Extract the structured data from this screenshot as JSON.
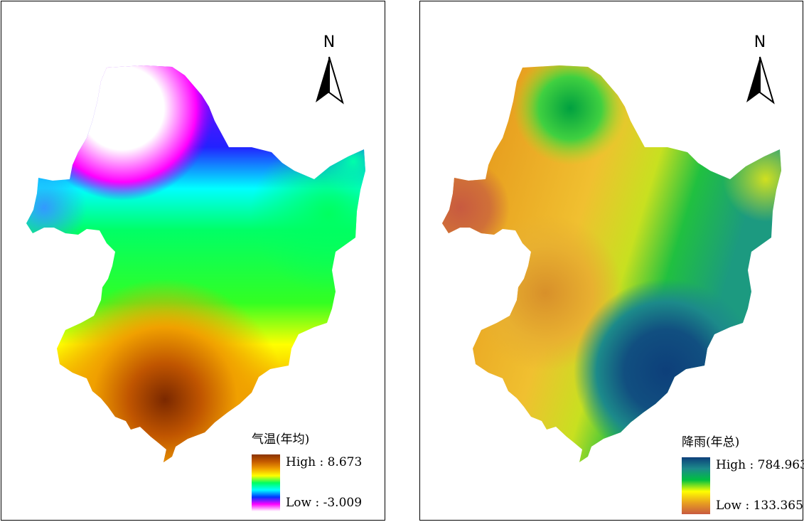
{
  "north_label": "N",
  "panels": [
    {
      "legend_title": "气温(年均)",
      "high_label": "High : 8.673",
      "low_label": "Low : -3.009",
      "ramp_colors": [
        "#8a3300",
        "#c45a00",
        "#f0a000",
        "#ffff00",
        "#00ff60",
        "#00ffff",
        "#0033ff",
        "#ff00ff",
        "#ffffff"
      ]
    },
    {
      "legend_title": "降雨(年总)",
      "high_label": "High : 784.963",
      "low_label": "Low : 133.365",
      "ramp_colors": [
        "#0d3f7a",
        "#1c8a8a",
        "#00c040",
        "#ffff00",
        "#e8a020",
        "#c85a40"
      ]
    }
  ]
}
